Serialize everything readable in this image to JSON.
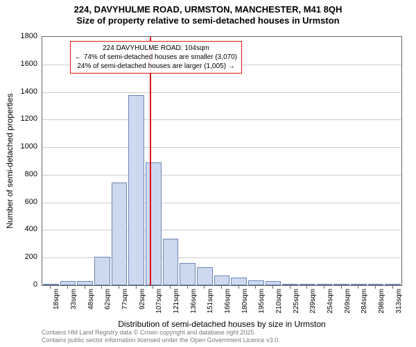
{
  "title": {
    "line1": "224, DAVYHULME ROAD, URMSTON, MANCHESTER, M41 8QH",
    "line2": "Size of property relative to semi-detached houses in Urmston"
  },
  "chart": {
    "type": "histogram",
    "background_color": "#ffffff",
    "grid_color": "#cccccc",
    "axis_color": "#666666",
    "bar_fill": "#cdd9ee",
    "bar_stroke": "#6a86b8",
    "reference_line_color": "#dd1111",
    "ylabel": "Number of semi-detached properties",
    "xlabel": "Distribution of semi-detached houses by size in Urmston",
    "ylim": [
      0,
      1800
    ],
    "ytick_step": 200,
    "yticks": [
      0,
      200,
      400,
      600,
      800,
      1000,
      1200,
      1400,
      1600,
      1800
    ],
    "x_categories": [
      "18sqm",
      "33sqm",
      "48sqm",
      "62sqm",
      "77sqm",
      "92sqm",
      "107sqm",
      "121sqm",
      "136sqm",
      "151sqm",
      "166sqm",
      "180sqm",
      "195sqm",
      "210sqm",
      "225sqm",
      "239sqm",
      "254sqm",
      "269sqm",
      "284sqm",
      "298sqm",
      "313sqm"
    ],
    "values": [
      5,
      30,
      30,
      205,
      745,
      1380,
      890,
      335,
      160,
      130,
      70,
      55,
      35,
      30,
      10,
      5,
      5,
      5,
      2,
      2,
      2
    ],
    "bar_width_ratio": 0.92,
    "reference_x_sqm": 104,
    "title_fontsize": 13,
    "label_fontsize": 12,
    "tick_fontsize": 11
  },
  "annotation": {
    "line1": "224 DAVYHULME ROAD: 104sqm",
    "line2": "← 74% of semi-detached houses are smaller (3,070)",
    "line3": "24% of semi-detached houses are larger (1,005) →"
  },
  "footer": {
    "line1": "Contains HM Land Registry data © Crown copyright and database right 2025.",
    "line2": "Contains public sector information licensed under the Open Government Licence v3.0."
  }
}
